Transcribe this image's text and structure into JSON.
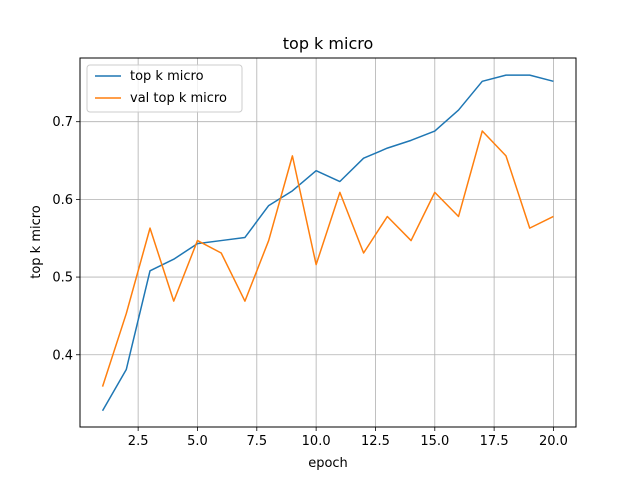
{
  "chart_data": {
    "type": "line",
    "title": "top k micro",
    "xlabel": "epoch",
    "ylabel": "top k micro",
    "xlim": [
      0.05,
      20.95
    ],
    "ylim": [
      0.307,
      0.782
    ],
    "x_ticks": [
      2.5,
      5.0,
      7.5,
      10.0,
      12.5,
      15.0,
      17.5,
      20.0
    ],
    "x_tick_labels": [
      "2.5",
      "5.0",
      "7.5",
      "10.0",
      "12.5",
      "15.0",
      "17.5",
      "20.0"
    ],
    "y_ticks": [
      0.4,
      0.5,
      0.6,
      0.7
    ],
    "y_tick_labels": [
      "0.4",
      "0.5",
      "0.6",
      "0.7"
    ],
    "grid": true,
    "legend_position": "top-left",
    "x": [
      1,
      2,
      3,
      4,
      5,
      6,
      7,
      8,
      9,
      10,
      11,
      12,
      13,
      14,
      15,
      16,
      17,
      18,
      19,
      20
    ],
    "series": [
      {
        "name": "top k micro",
        "color": "#1f77b4",
        "values": [
          0.328,
          0.381,
          0.508,
          0.523,
          0.543,
          0.547,
          0.551,
          0.592,
          0.611,
          0.637,
          0.623,
          0.653,
          0.666,
          0.676,
          0.688,
          0.715,
          0.752,
          0.76,
          0.76,
          0.752
        ]
      },
      {
        "name": "val top k micro",
        "color": "#ff7f0e",
        "values": [
          0.359,
          0.453,
          0.563,
          0.469,
          0.547,
          0.531,
          0.469,
          0.547,
          0.656,
          0.516,
          0.609,
          0.531,
          0.578,
          0.547,
          0.609,
          0.578,
          0.688,
          0.656,
          0.563,
          0.578
        ]
      }
    ]
  }
}
